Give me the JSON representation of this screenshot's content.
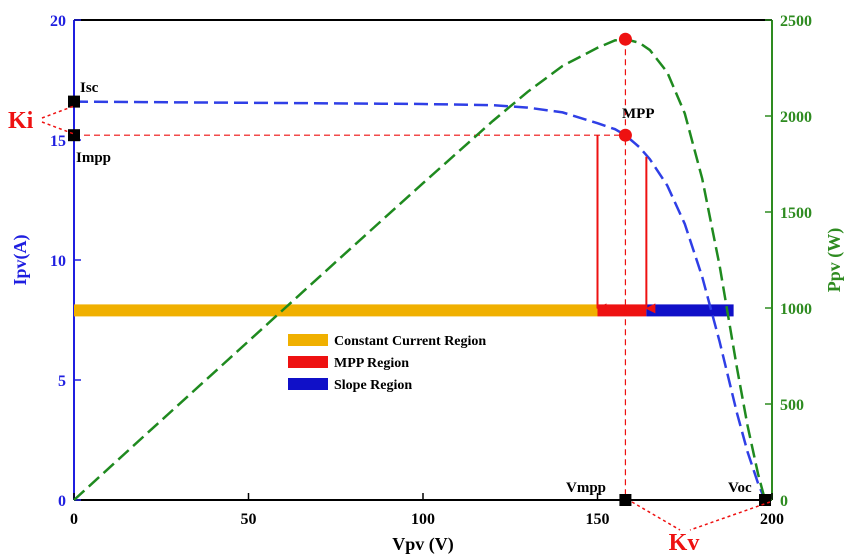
{
  "chart_data": {
    "type": "line",
    "xlabel": "Vpv (V)",
    "ylabel_left": "Ipv(A)",
    "ylabel_right": "Ppv (W)",
    "xlim": [
      0,
      200
    ],
    "ylim_left": [
      0,
      20
    ],
    "ylim_right": [
      0,
      2500
    ],
    "x_ticks": [
      "0",
      "50",
      "100",
      "150",
      "200"
    ],
    "y_ticks_left": [
      "0",
      "5",
      "10",
      "15",
      "20"
    ],
    "y_ticks_right": [
      "0",
      "500",
      "1000",
      "1500",
      "2000",
      "2500"
    ],
    "colors": {
      "current": "#2f3fe6",
      "power": "#1f8a1f",
      "accent": "#ee1111",
      "constant_region": "#f0b000",
      "mpp_region": "#ee1111",
      "slope_region": "#1010c8"
    },
    "series": [
      {
        "axis": "left",
        "color": "#2f3fe6",
        "x": [
          0,
          20,
          40,
          60,
          80,
          100,
          120,
          130,
          140,
          150,
          155,
          158,
          162,
          165,
          170,
          175,
          180,
          185,
          190,
          193,
          196,
          198
        ],
        "y": [
          16.6,
          16.58,
          16.56,
          16.54,
          16.52,
          16.5,
          16.45,
          16.35,
          16.15,
          15.7,
          15.45,
          15.2,
          14.7,
          14.2,
          13.1,
          11.5,
          9.3,
          6.6,
          3.6,
          2.0,
          0.7,
          0
        ]
      },
      {
        "axis": "right",
        "color": "#1f8a1f",
        "x": [
          0,
          20,
          40,
          60,
          80,
          100,
          120,
          130,
          140,
          150,
          155,
          158,
          162,
          165,
          170,
          175,
          180,
          185,
          190,
          193,
          196,
          198
        ],
        "y": [
          0,
          332,
          662,
          992,
          1322,
          1650,
          1974,
          2126,
          2261,
          2355,
          2394,
          2400,
          2381,
          2343,
          2227,
          2013,
          1674,
          1221,
          684,
          386,
          137,
          0
        ]
      }
    ],
    "regions": [
      {
        "name": "Constant Current Region",
        "x_start": 0,
        "x_end": 150,
        "y_level": 7.9,
        "color": "#f0b000"
      },
      {
        "name": "MPP Region",
        "x_start": 150,
        "x_end": 164,
        "y_level": 7.9,
        "color": "#ee1111"
      },
      {
        "name": "Slope Region",
        "x_start": 164,
        "x_end": 189,
        "y_level": 7.9,
        "color": "#1010c8"
      }
    ],
    "legend": {
      "placement": "center",
      "entries": [
        "Constant Current Region",
        "MPP Region",
        "Slope Region"
      ]
    },
    "points": {
      "isc": {
        "label": "Isc",
        "x": 0,
        "y": 16.6
      },
      "impp": {
        "label": "Impp",
        "x": 0,
        "y": 15.2
      },
      "mpp": {
        "label": "MPP",
        "x": 158,
        "y": 15.2
      },
      "pmax": {
        "x": 158,
        "y": 2400
      },
      "vmpp": {
        "label": "Vmpp",
        "x": 158,
        "y": 0
      },
      "voc": {
        "label": "Voc",
        "x": 198,
        "y": 0
      }
    },
    "arrows": [
      {
        "x": 150,
        "from_y": 15.2,
        "to_y": 7.9
      },
      {
        "x": 164,
        "from_y": 14.3,
        "to_y": 7.9
      }
    ],
    "annotations": {
      "ki": "Ki",
      "kv": "Kv"
    },
    "grid": false
  }
}
